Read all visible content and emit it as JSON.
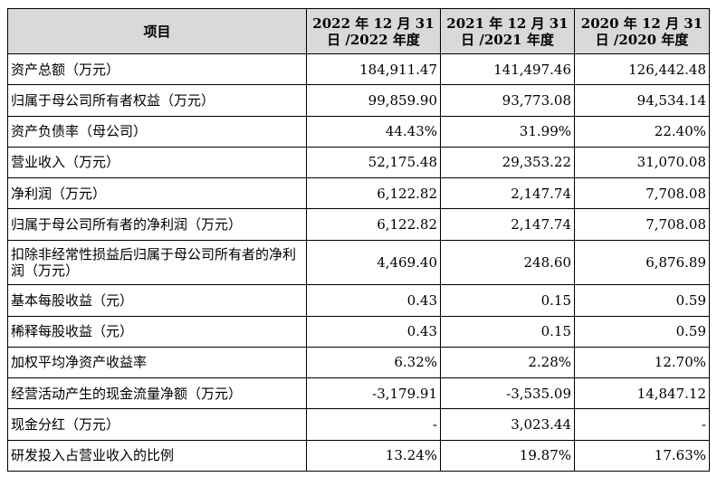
{
  "table": {
    "headers": [
      "项目",
      "2022 年 12 月 31 日 /2022 年度",
      "2021 年 12 月 31 日 /2021 年度",
      "2020 年 12 月 31 日 /2020 年度"
    ],
    "rows": [
      {
        "label": "资产总额（万元）",
        "values": [
          "184,911.47",
          "141,497.46",
          "126,442.48"
        ]
      },
      {
        "label": "归属于母公司所有者权益（万元）",
        "values": [
          "99,859.90",
          "93,773.08",
          "94,534.14"
        ]
      },
      {
        "label": "资产负债率（母公司）",
        "values": [
          "44.43%",
          "31.99%",
          "22.40%"
        ]
      },
      {
        "label": "营业收入（万元）",
        "values": [
          "52,175.48",
          "29,353.22",
          "31,070.08"
        ]
      },
      {
        "label": "净利润（万元）",
        "values": [
          "6,122.82",
          "2,147.74",
          "7,708.08"
        ]
      },
      {
        "label": "归属于母公司所有者的净利润（万元）",
        "values": [
          "6,122.82",
          "2,147.74",
          "7,708.08"
        ]
      },
      {
        "label": "扣除非经常性损益后归属于母公司所有者的净利润（万元）",
        "values": [
          "4,469.40",
          "248.60",
          "6,876.89"
        ]
      },
      {
        "label": "基本每股收益（元）",
        "values": [
          "0.43",
          "0.15",
          "0.59"
        ]
      },
      {
        "label": "稀释每股收益（元）",
        "values": [
          "0.43",
          "0.15",
          "0.59"
        ]
      },
      {
        "label": "加权平均净资产收益率",
        "values": [
          "6.32%",
          "2.28%",
          "12.70%"
        ]
      },
      {
        "label": "经营活动产生的现金流量净额（万元）",
        "values": [
          "-3,179.91",
          "-3,535.09",
          "14,847.12"
        ]
      },
      {
        "label": "现金分红（万元）",
        "values": [
          "-",
          "3,023.44",
          "-"
        ]
      },
      {
        "label": "研发投入占营业收入的比例",
        "values": [
          "13.24%",
          "19.87%",
          "17.63%"
        ]
      }
    ]
  }
}
